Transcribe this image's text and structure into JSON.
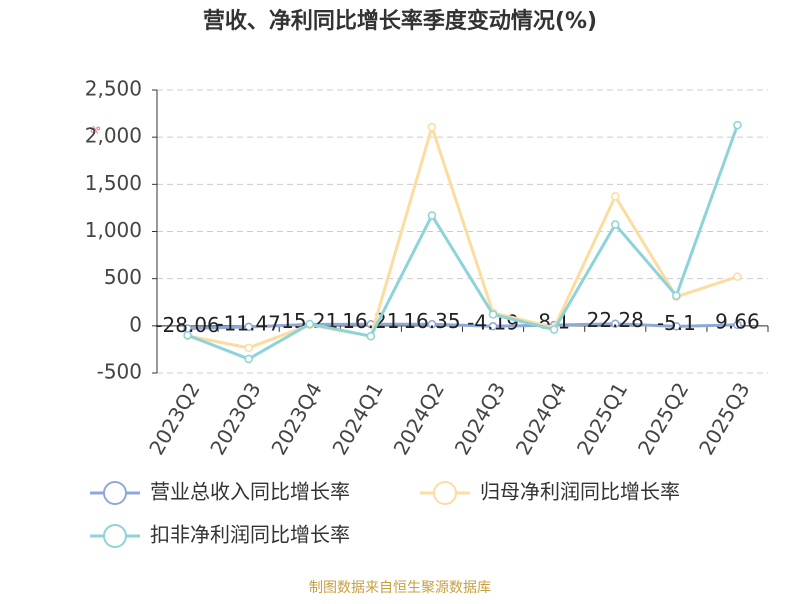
{
  "chart_data": {
    "type": "line",
    "title": "营收、净利同比增长率季度变动情况(%)",
    "unit": "%",
    "categories": [
      "2023Q2",
      "2023Q3",
      "2023Q4",
      "2024Q1",
      "2024Q2",
      "2024Q3",
      "2024Q4",
      "2025Q1",
      "2025Q2",
      "2025Q3"
    ],
    "series": [
      {
        "name": "营业总收入同比增长率",
        "color": "#8fa8d8",
        "values": [
          -28.06,
          -11.47,
          15.21,
          16.21,
          16.35,
          -4.19,
          8.1,
          22.28,
          -5.1,
          9.66
        ],
        "show_labels": true
      },
      {
        "name": "归母净利润同比增长率",
        "color": "#fcdca0",
        "values": [
          -106,
          -234,
          10,
          -110,
          2106,
          138,
          -20,
          1372,
          308,
          521
        ]
      },
      {
        "name": "扣非净利润同比增长率",
        "color": "#8dd3d8",
        "values": [
          -100,
          -351,
          20,
          -110,
          1170,
          120,
          -40,
          1074,
          320,
          2128
        ]
      }
    ],
    "ylim": [
      -500,
      2500
    ],
    "yticks": [
      -500,
      0,
      500,
      {
        "value": 1000,
        "label": "1,000"
      },
      {
        "value": 1500,
        "label": "1,500"
      },
      {
        "value": 2000,
        "label": "2,000"
      },
      {
        "value": 2500,
        "label": "2,500"
      }
    ],
    "grid": true,
    "legend": "bottom",
    "source": "制图数据来自恒生聚源数据库"
  }
}
